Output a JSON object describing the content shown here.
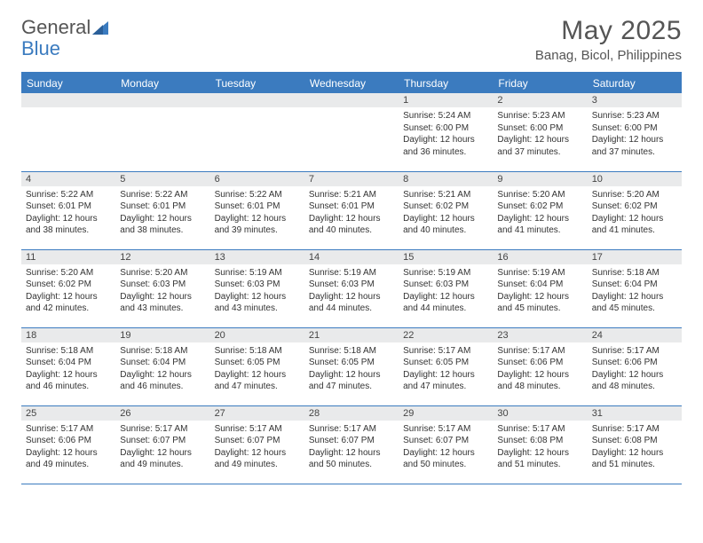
{
  "logo": {
    "text1": "General",
    "text2": "Blue"
  },
  "title": "May 2025",
  "location": "Banag, Bicol, Philippines",
  "colors": {
    "header_bg": "#3b7bbf",
    "header_text": "#ffffff",
    "daynum_bg": "#e9eaeb",
    "text": "#333333",
    "title_text": "#555555"
  },
  "weekdays": [
    "Sunday",
    "Monday",
    "Tuesday",
    "Wednesday",
    "Thursday",
    "Friday",
    "Saturday"
  ],
  "first_weekday": 4,
  "days": [
    {
      "n": 1,
      "sr": "5:24 AM",
      "ss": "6:00 PM",
      "dl": "12 hours and 36 minutes."
    },
    {
      "n": 2,
      "sr": "5:23 AM",
      "ss": "6:00 PM",
      "dl": "12 hours and 37 minutes."
    },
    {
      "n": 3,
      "sr": "5:23 AM",
      "ss": "6:00 PM",
      "dl": "12 hours and 37 minutes."
    },
    {
      "n": 4,
      "sr": "5:22 AM",
      "ss": "6:01 PM",
      "dl": "12 hours and 38 minutes."
    },
    {
      "n": 5,
      "sr": "5:22 AM",
      "ss": "6:01 PM",
      "dl": "12 hours and 38 minutes."
    },
    {
      "n": 6,
      "sr": "5:22 AM",
      "ss": "6:01 PM",
      "dl": "12 hours and 39 minutes."
    },
    {
      "n": 7,
      "sr": "5:21 AM",
      "ss": "6:01 PM",
      "dl": "12 hours and 40 minutes."
    },
    {
      "n": 8,
      "sr": "5:21 AM",
      "ss": "6:02 PM",
      "dl": "12 hours and 40 minutes."
    },
    {
      "n": 9,
      "sr": "5:20 AM",
      "ss": "6:02 PM",
      "dl": "12 hours and 41 minutes."
    },
    {
      "n": 10,
      "sr": "5:20 AM",
      "ss": "6:02 PM",
      "dl": "12 hours and 41 minutes."
    },
    {
      "n": 11,
      "sr": "5:20 AM",
      "ss": "6:02 PM",
      "dl": "12 hours and 42 minutes."
    },
    {
      "n": 12,
      "sr": "5:20 AM",
      "ss": "6:03 PM",
      "dl": "12 hours and 43 minutes."
    },
    {
      "n": 13,
      "sr": "5:19 AM",
      "ss": "6:03 PM",
      "dl": "12 hours and 43 minutes."
    },
    {
      "n": 14,
      "sr": "5:19 AM",
      "ss": "6:03 PM",
      "dl": "12 hours and 44 minutes."
    },
    {
      "n": 15,
      "sr": "5:19 AM",
      "ss": "6:03 PM",
      "dl": "12 hours and 44 minutes."
    },
    {
      "n": 16,
      "sr": "5:19 AM",
      "ss": "6:04 PM",
      "dl": "12 hours and 45 minutes."
    },
    {
      "n": 17,
      "sr": "5:18 AM",
      "ss": "6:04 PM",
      "dl": "12 hours and 45 minutes."
    },
    {
      "n": 18,
      "sr": "5:18 AM",
      "ss": "6:04 PM",
      "dl": "12 hours and 46 minutes."
    },
    {
      "n": 19,
      "sr": "5:18 AM",
      "ss": "6:04 PM",
      "dl": "12 hours and 46 minutes."
    },
    {
      "n": 20,
      "sr": "5:18 AM",
      "ss": "6:05 PM",
      "dl": "12 hours and 47 minutes."
    },
    {
      "n": 21,
      "sr": "5:18 AM",
      "ss": "6:05 PM",
      "dl": "12 hours and 47 minutes."
    },
    {
      "n": 22,
      "sr": "5:17 AM",
      "ss": "6:05 PM",
      "dl": "12 hours and 47 minutes."
    },
    {
      "n": 23,
      "sr": "5:17 AM",
      "ss": "6:06 PM",
      "dl": "12 hours and 48 minutes."
    },
    {
      "n": 24,
      "sr": "5:17 AM",
      "ss": "6:06 PM",
      "dl": "12 hours and 48 minutes."
    },
    {
      "n": 25,
      "sr": "5:17 AM",
      "ss": "6:06 PM",
      "dl": "12 hours and 49 minutes."
    },
    {
      "n": 26,
      "sr": "5:17 AM",
      "ss": "6:07 PM",
      "dl": "12 hours and 49 minutes."
    },
    {
      "n": 27,
      "sr": "5:17 AM",
      "ss": "6:07 PM",
      "dl": "12 hours and 49 minutes."
    },
    {
      "n": 28,
      "sr": "5:17 AM",
      "ss": "6:07 PM",
      "dl": "12 hours and 50 minutes."
    },
    {
      "n": 29,
      "sr": "5:17 AM",
      "ss": "6:07 PM",
      "dl": "12 hours and 50 minutes."
    },
    {
      "n": 30,
      "sr": "5:17 AM",
      "ss": "6:08 PM",
      "dl": "12 hours and 51 minutes."
    },
    {
      "n": 31,
      "sr": "5:17 AM",
      "ss": "6:08 PM",
      "dl": "12 hours and 51 minutes."
    }
  ],
  "labels": {
    "sunrise": "Sunrise:",
    "sunset": "Sunset:",
    "daylight": "Daylight:"
  }
}
